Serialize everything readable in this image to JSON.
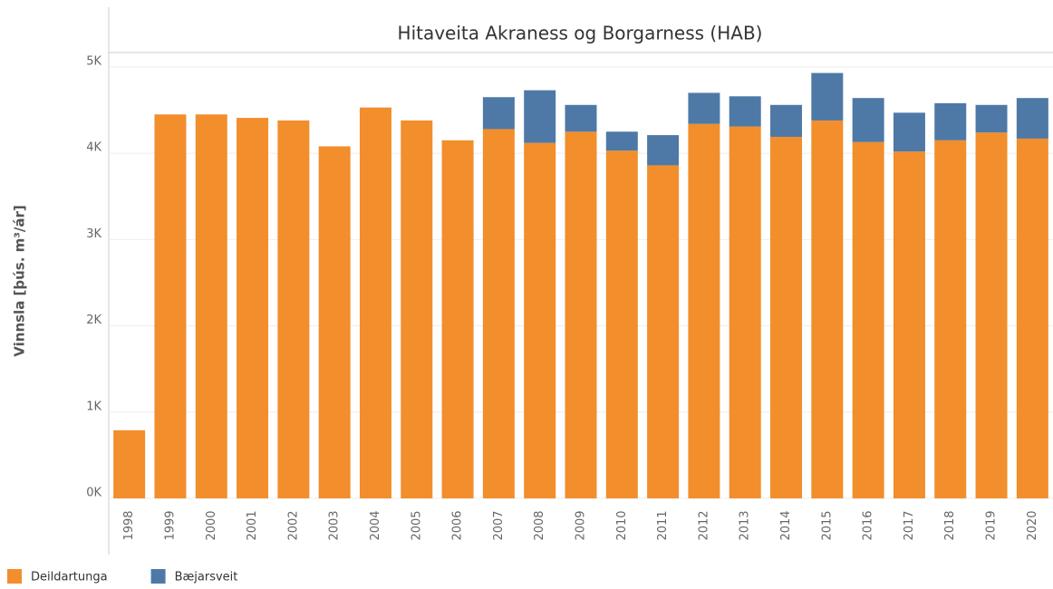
{
  "chart_data": {
    "type": "stacked_bar",
    "title": "Hitaveita Akraness og Borgarness (HAB)",
    "y_label": "Vinnsla [þús. m³/ár]",
    "categories": [
      "1998",
      "1999",
      "2000",
      "2001",
      "2002",
      "2003",
      "2004",
      "2005",
      "2006",
      "2007",
      "2008",
      "2009",
      "2010",
      "2011",
      "2012",
      "2013",
      "2014",
      "2015",
      "2016",
      "2017",
      "2018",
      "2019",
      "2020"
    ],
    "series": [
      {
        "name": "Deildartunga",
        "color": "#f28e2b",
        "values": [
          790,
          4450,
          4450,
          4410,
          4380,
          4080,
          4530,
          4380,
          4150,
          4280,
          4120,
          4250,
          4030,
          3860,
          4340,
          4310,
          4190,
          4380,
          4130,
          4020,
          4150,
          4240,
          4170
        ]
      },
      {
        "name": "Bæjarsveit",
        "color": "#4e79a7",
        "values": [
          null,
          null,
          null,
          null,
          null,
          null,
          null,
          null,
          null,
          370,
          610,
          310,
          220,
          350,
          360,
          350,
          370,
          550,
          510,
          450,
          430,
          320,
          470
        ]
      }
    ],
    "ylim": [
      0,
      5650
    ],
    "yticks": [
      {
        "value": 0,
        "label": "0K"
      },
      {
        "value": 1000,
        "label": "1K"
      },
      {
        "value": 2000,
        "label": "2K"
      },
      {
        "value": 3000,
        "label": "3K"
      },
      {
        "value": 4000,
        "label": "4K"
      },
      {
        "value": 5000,
        "label": "5K"
      }
    ],
    "grid": true
  }
}
